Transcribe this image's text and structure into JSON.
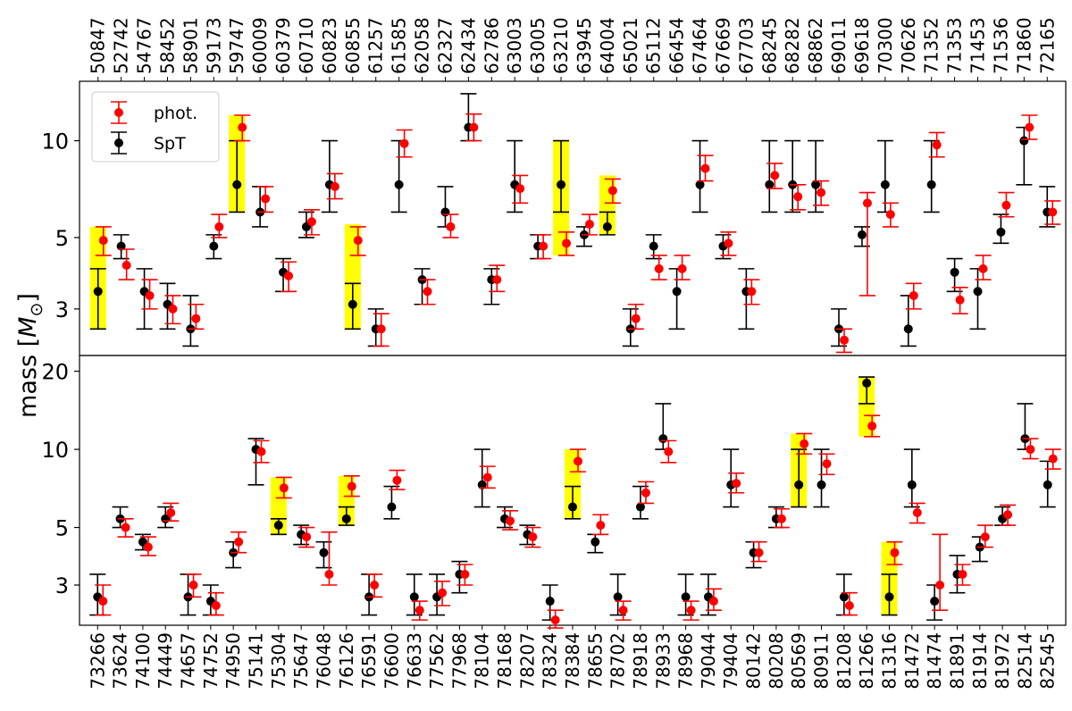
{
  "chart_data": {
    "type": "scatter",
    "ylabel_prefix": "mass [",
    "ylabel_symbol": "M",
    "ylabel_sub": "⊙",
    "ylabel_suffix": "]",
    "yscale": "log",
    "legend": {
      "placement": "top-left",
      "entries": [
        {
          "label": "phot.",
          "color": "#ff0000"
        },
        {
          "label": "SpT",
          "color": "#000000"
        }
      ]
    },
    "colors": {
      "phot": "#ff0000",
      "spt": "#000000",
      "highlight": "#ffff00"
    },
    "panels": [
      {
        "name": "top",
        "ylim": [
          2.15,
          15.3
        ],
        "yticks": [
          {
            "value": 3,
            "label": "3"
          },
          {
            "value": 5,
            "label": "5"
          },
          {
            "value": 10,
            "label": "10"
          }
        ],
        "label_side": "top",
        "categories": [
          "50847",
          "52742",
          "54767",
          "58452",
          "58901",
          "59173",
          "59747",
          "60009",
          "60379",
          "60710",
          "60823",
          "60855",
          "61257",
          "61585",
          "62058",
          "62327",
          "62434",
          "62786",
          "63003",
          "63005",
          "63210",
          "63945",
          "64004",
          "65021",
          "65112",
          "66454",
          "67464",
          "67669",
          "67703",
          "68245",
          "68282",
          "68862",
          "69011",
          "69618",
          "70300",
          "70626",
          "71352",
          "71353",
          "71453",
          "71536",
          "71860",
          "72165"
        ],
        "spt": [
          {
            "y": 3.4,
            "lo": 2.6,
            "hi": 4.0
          },
          {
            "y": 4.7,
            "lo": 4.3,
            "hi": 5.1
          },
          {
            "y": 3.4,
            "lo": 2.6,
            "hi": 4.0
          },
          {
            "y": 3.1,
            "lo": 2.6,
            "hi": 3.6
          },
          {
            "y": 2.6,
            "lo": 2.3,
            "hi": 3.3
          },
          {
            "y": 4.7,
            "lo": 4.3,
            "hi": 5.1
          },
          {
            "y": 7.3,
            "lo": 6.0,
            "hi": 10.0
          },
          {
            "y": 6.0,
            "lo": 5.4,
            "hi": 7.2
          },
          {
            "y": 3.9,
            "lo": 3.4,
            "hi": 4.3
          },
          {
            "y": 5.4,
            "lo": 5.0,
            "hi": 6.0
          },
          {
            "y": 7.3,
            "lo": 6.0,
            "hi": 10.0
          },
          {
            "y": 3.1,
            "lo": 2.6,
            "hi": 3.6
          },
          {
            "y": 2.6,
            "lo": 2.3,
            "hi": 3.0
          },
          {
            "y": 7.3,
            "lo": 6.0,
            "hi": 10.0
          },
          {
            "y": 3.7,
            "lo": 3.1,
            "hi": 4.0
          },
          {
            "y": 6.0,
            "lo": 5.4,
            "hi": 7.2
          },
          {
            "y": 11.0,
            "lo": 10.0,
            "hi": 14.0
          },
          {
            "y": 3.7,
            "lo": 3.1,
            "hi": 4.0
          },
          {
            "y": 7.3,
            "lo": 6.0,
            "hi": 10.0
          },
          {
            "y": 4.7,
            "lo": 4.3,
            "hi": 5.1
          },
          {
            "y": 7.3,
            "lo": 6.0,
            "hi": 10.0
          },
          {
            "y": 5.1,
            "lo": 4.7,
            "hi": 5.4
          },
          {
            "y": 5.4,
            "lo": 5.1,
            "hi": 6.0
          },
          {
            "y": 2.6,
            "lo": 2.3,
            "hi": 3.0
          },
          {
            "y": 4.7,
            "lo": 4.3,
            "hi": 5.1
          },
          {
            "y": 3.4,
            "lo": 2.6,
            "hi": 4.0
          },
          {
            "y": 7.3,
            "lo": 6.0,
            "hi": 10.0
          },
          {
            "y": 4.7,
            "lo": 4.3,
            "hi": 5.1
          },
          {
            "y": 3.4,
            "lo": 2.6,
            "hi": 4.0
          },
          {
            "y": 7.3,
            "lo": 6.0,
            "hi": 10.0
          },
          {
            "y": 7.3,
            "lo": 6.0,
            "hi": 10.0
          },
          {
            "y": 7.3,
            "lo": 6.0,
            "hi": 10.0
          },
          {
            "y": 2.6,
            "lo": 2.3,
            "hi": 3.0
          },
          {
            "y": 5.1,
            "lo": 4.7,
            "hi": 5.4
          },
          {
            "y": 7.3,
            "lo": 6.0,
            "hi": 10.0
          },
          {
            "y": 2.6,
            "lo": 2.3,
            "hi": 3.3
          },
          {
            "y": 7.3,
            "lo": 6.0,
            "hi": 10.0
          },
          {
            "y": 3.9,
            "lo": 3.4,
            "hi": 4.3
          },
          {
            "y": 3.4,
            "lo": 2.6,
            "hi": 4.0
          },
          {
            "y": 5.2,
            "lo": 4.8,
            "hi": 5.9
          },
          {
            "y": 10.0,
            "lo": 7.3,
            "hi": 11.0
          },
          {
            "y": 6.0,
            "lo": 5.4,
            "hi": 7.2
          }
        ],
        "phot": [
          {
            "y": 4.9,
            "lo": 4.4,
            "hi": 5.4
          },
          {
            "y": 4.1,
            "lo": 3.7,
            "hi": 4.6
          },
          {
            "y": 3.3,
            "lo": 3.0,
            "hi": 3.7
          },
          {
            "y": 3.0,
            "lo": 2.7,
            "hi": 3.3
          },
          {
            "y": 2.8,
            "lo": 2.6,
            "hi": 3.1
          },
          {
            "y": 5.4,
            "lo": 5.0,
            "hi": 5.9
          },
          {
            "y": 11.0,
            "lo": 10.0,
            "hi": 12.0
          },
          {
            "y": 6.6,
            "lo": 6.0,
            "hi": 7.2
          },
          {
            "y": 3.8,
            "lo": 3.4,
            "hi": 4.2
          },
          {
            "y": 5.6,
            "lo": 5.1,
            "hi": 6.1
          },
          {
            "y": 7.2,
            "lo": 6.6,
            "hi": 7.9
          },
          {
            "y": 4.9,
            "lo": 4.4,
            "hi": 5.4
          },
          {
            "y": 2.6,
            "lo": 2.3,
            "hi": 2.9
          },
          {
            "y": 9.8,
            "lo": 8.9,
            "hi": 10.8
          },
          {
            "y": 3.4,
            "lo": 3.1,
            "hi": 3.7
          },
          {
            "y": 5.4,
            "lo": 5.0,
            "hi": 5.9
          },
          {
            "y": 11.0,
            "lo": 10.0,
            "hi": 12.1
          },
          {
            "y": 3.7,
            "lo": 3.4,
            "hi": 4.1
          },
          {
            "y": 7.1,
            "lo": 6.4,
            "hi": 7.8
          },
          {
            "y": 4.7,
            "lo": 4.3,
            "hi": 5.1
          },
          {
            "y": 4.8,
            "lo": 4.4,
            "hi": 5.2
          },
          {
            "y": 5.5,
            "lo": 5.1,
            "hi": 5.9
          },
          {
            "y": 7.0,
            "lo": 6.4,
            "hi": 7.6
          },
          {
            "y": 2.8,
            "lo": 2.6,
            "hi": 3.1
          },
          {
            "y": 4.0,
            "lo": 3.7,
            "hi": 4.4
          },
          {
            "y": 4.0,
            "lo": 3.7,
            "hi": 4.4
          },
          {
            "y": 8.2,
            "lo": 7.5,
            "hi": 9.0
          },
          {
            "y": 4.8,
            "lo": 4.4,
            "hi": 5.2
          },
          {
            "y": 3.4,
            "lo": 3.1,
            "hi": 3.7
          },
          {
            "y": 7.8,
            "lo": 7.1,
            "hi": 8.5
          },
          {
            "y": 6.7,
            "lo": 6.1,
            "hi": 7.3
          },
          {
            "y": 6.9,
            "lo": 6.3,
            "hi": 7.5
          },
          {
            "y": 2.4,
            "lo": 2.2,
            "hi": 2.6
          },
          {
            "y": 6.4,
            "lo": 3.3,
            "hi": 6.9
          },
          {
            "y": 5.9,
            "lo": 5.4,
            "hi": 6.4
          },
          {
            "y": 3.3,
            "lo": 3.0,
            "hi": 3.6
          },
          {
            "y": 9.7,
            "lo": 8.9,
            "hi": 10.6
          },
          {
            "y": 3.2,
            "lo": 2.9,
            "hi": 3.5
          },
          {
            "y": 4.0,
            "lo": 3.7,
            "hi": 4.4
          },
          {
            "y": 6.3,
            "lo": 5.8,
            "hi": 6.9
          },
          {
            "y": 11.0,
            "lo": 10.1,
            "hi": 12.0
          },
          {
            "y": 6.0,
            "lo": 5.5,
            "hi": 6.5
          }
        ],
        "highlights": [
          {
            "index": 0,
            "lo": 2.6,
            "hi": 5.4
          },
          {
            "index": 6,
            "lo": 6.0,
            "hi": 12.0
          },
          {
            "index": 11,
            "lo": 2.6,
            "hi": 5.5
          },
          {
            "index": 20,
            "lo": 4.4,
            "hi": 10.0
          },
          {
            "index": 22,
            "lo": 5.1,
            "hi": 7.8
          }
        ]
      },
      {
        "name": "bottom",
        "ylim": [
          2.1,
          23.0
        ],
        "yticks": [
          {
            "value": 3,
            "label": "3"
          },
          {
            "value": 5,
            "label": "5"
          },
          {
            "value": 10,
            "label": "10"
          },
          {
            "value": 20,
            "label": "20"
          }
        ],
        "label_side": "bottom",
        "categories": [
          "73266",
          "73624",
          "74100",
          "74449",
          "74657",
          "74752",
          "74950",
          "75141",
          "75304",
          "75647",
          "76048",
          "76126",
          "76591",
          "76600",
          "76633",
          "77562",
          "77968",
          "78104",
          "78168",
          "78207",
          "78324",
          "78384",
          "78655",
          "78702",
          "78918",
          "78933",
          "78968",
          "79044",
          "79404",
          "80142",
          "80208",
          "80569",
          "80911",
          "81208",
          "81266",
          "81316",
          "81472",
          "81474",
          "81891",
          "81914",
          "81972",
          "82514",
          "82545"
        ],
        "spt": [
          {
            "y": 2.7,
            "lo": 2.3,
            "hi": 3.3
          },
          {
            "y": 5.4,
            "lo": 5.0,
            "hi": 6.0
          },
          {
            "y": 4.4,
            "lo": 4.1,
            "hi": 4.7
          },
          {
            "y": 5.4,
            "lo": 5.0,
            "hi": 6.0
          },
          {
            "y": 2.7,
            "lo": 2.3,
            "hi": 3.3
          },
          {
            "y": 2.6,
            "lo": 2.3,
            "hi": 3.0
          },
          {
            "y": 4.0,
            "lo": 3.5,
            "hi": 4.4
          },
          {
            "y": 10.0,
            "lo": 7.3,
            "hi": 11.0
          },
          {
            "y": 5.1,
            "lo": 4.7,
            "hi": 5.4
          },
          {
            "y": 4.7,
            "lo": 4.3,
            "hi": 5.1
          },
          {
            "y": 4.0,
            "lo": 3.5,
            "hi": 4.4
          },
          {
            "y": 5.4,
            "lo": 5.1,
            "hi": 6.0
          },
          {
            "y": 2.7,
            "lo": 2.3,
            "hi": 3.3
          },
          {
            "y": 6.0,
            "lo": 5.4,
            "hi": 7.2
          },
          {
            "y": 2.7,
            "lo": 2.3,
            "hi": 3.3
          },
          {
            "y": 2.7,
            "lo": 2.3,
            "hi": 3.3
          },
          {
            "y": 3.3,
            "lo": 2.8,
            "hi": 3.7
          },
          {
            "y": 7.3,
            "lo": 6.0,
            "hi": 10.0
          },
          {
            "y": 5.4,
            "lo": 5.0,
            "hi": 6.0
          },
          {
            "y": 4.7,
            "lo": 4.3,
            "hi": 5.1
          },
          {
            "y": 2.6,
            "lo": 2.2,
            "hi": 3.0
          },
          {
            "y": 6.0,
            "lo": 5.4,
            "hi": 7.2
          },
          {
            "y": 4.4,
            "lo": 4.0,
            "hi": 4.7
          },
          {
            "y": 2.7,
            "lo": 2.3,
            "hi": 3.3
          },
          {
            "y": 6.0,
            "lo": 5.4,
            "hi": 7.2
          },
          {
            "y": 11.0,
            "lo": 10.0,
            "hi": 15.0
          },
          {
            "y": 2.7,
            "lo": 2.3,
            "hi": 3.3
          },
          {
            "y": 2.7,
            "lo": 2.3,
            "hi": 3.3
          },
          {
            "y": 7.3,
            "lo": 6.0,
            "hi": 10.0
          },
          {
            "y": 4.0,
            "lo": 3.5,
            "hi": 4.4
          },
          {
            "y": 5.4,
            "lo": 5.0,
            "hi": 6.0
          },
          {
            "y": 7.3,
            "lo": 6.0,
            "hi": 10.0
          },
          {
            "y": 7.3,
            "lo": 6.0,
            "hi": 10.0
          },
          {
            "y": 2.7,
            "lo": 2.3,
            "hi": 3.3
          },
          {
            "y": 18.0,
            "lo": 15.0,
            "hi": 19.0
          },
          {
            "y": 2.7,
            "lo": 2.3,
            "hi": 3.3
          },
          {
            "y": 7.3,
            "lo": 6.0,
            "hi": 10.0
          },
          {
            "y": 2.6,
            "lo": 2.2,
            "hi": 3.0
          },
          {
            "y": 3.3,
            "lo": 2.8,
            "hi": 3.9
          },
          {
            "y": 4.2,
            "lo": 3.7,
            "hi": 4.6
          },
          {
            "y": 5.4,
            "lo": 5.1,
            "hi": 6.0
          },
          {
            "y": 11.0,
            "lo": 10.0,
            "hi": 15.0
          },
          {
            "y": 7.3,
            "lo": 6.0,
            "hi": 9.0
          }
        ],
        "phot": [
          {
            "y": 2.6,
            "lo": 2.3,
            "hi": 3.0
          },
          {
            "y": 5.0,
            "lo": 4.6,
            "hi": 5.4
          },
          {
            "y": 4.2,
            "lo": 3.9,
            "hi": 4.6
          },
          {
            "y": 5.7,
            "lo": 5.3,
            "hi": 6.2
          },
          {
            "y": 3.0,
            "lo": 2.7,
            "hi": 3.3
          },
          {
            "y": 2.5,
            "lo": 2.3,
            "hi": 2.8
          },
          {
            "y": 4.4,
            "lo": 4.0,
            "hi": 4.8
          },
          {
            "y": 9.8,
            "lo": 8.9,
            "hi": 10.8
          },
          {
            "y": 7.1,
            "lo": 6.5,
            "hi": 7.8
          },
          {
            "y": 4.6,
            "lo": 4.2,
            "hi": 5.0
          },
          {
            "y": 3.3,
            "lo": 3.0,
            "hi": 4.8
          },
          {
            "y": 7.2,
            "lo": 6.6,
            "hi": 7.9
          },
          {
            "y": 3.0,
            "lo": 2.7,
            "hi": 3.3
          },
          {
            "y": 7.6,
            "lo": 7.0,
            "hi": 8.3
          },
          {
            "y": 2.4,
            "lo": 2.2,
            "hi": 2.6
          },
          {
            "y": 2.8,
            "lo": 2.5,
            "hi": 3.1
          },
          {
            "y": 3.3,
            "lo": 3.0,
            "hi": 3.6
          },
          {
            "y": 7.8,
            "lo": 7.1,
            "hi": 8.6
          },
          {
            "y": 5.3,
            "lo": 4.9,
            "hi": 5.8
          },
          {
            "y": 4.6,
            "lo": 4.2,
            "hi": 5.0
          },
          {
            "y": 2.2,
            "lo": 2.05,
            "hi": 2.4
          },
          {
            "y": 9.0,
            "lo": 8.2,
            "hi": 10.0
          },
          {
            "y": 5.1,
            "lo": 4.7,
            "hi": 5.6
          },
          {
            "y": 2.4,
            "lo": 2.2,
            "hi": 2.6
          },
          {
            "y": 6.8,
            "lo": 6.2,
            "hi": 7.5
          },
          {
            "y": 9.8,
            "lo": 8.9,
            "hi": 10.8
          },
          {
            "y": 2.4,
            "lo": 2.2,
            "hi": 2.6
          },
          {
            "y": 2.6,
            "lo": 2.4,
            "hi": 2.9
          },
          {
            "y": 7.4,
            "lo": 6.8,
            "hi": 8.1
          },
          {
            "y": 4.0,
            "lo": 3.7,
            "hi": 4.4
          },
          {
            "y": 5.4,
            "lo": 5.0,
            "hi": 5.9
          },
          {
            "y": 10.5,
            "lo": 9.6,
            "hi": 11.5
          },
          {
            "y": 8.8,
            "lo": 8.0,
            "hi": 9.6
          },
          {
            "y": 2.5,
            "lo": 2.3,
            "hi": 2.8
          },
          {
            "y": 12.3,
            "lo": 11.2,
            "hi": 13.5
          },
          {
            "y": 4.0,
            "lo": 3.6,
            "hi": 4.4
          },
          {
            "y": 5.7,
            "lo": 5.2,
            "hi": 6.2
          },
          {
            "y": 3.0,
            "lo": 2.4,
            "hi": 4.7
          },
          {
            "y": 3.3,
            "lo": 3.0,
            "hi": 3.6
          },
          {
            "y": 4.6,
            "lo": 4.2,
            "hi": 5.1
          },
          {
            "y": 5.6,
            "lo": 5.1,
            "hi": 6.1
          },
          {
            "y": 10.0,
            "lo": 9.2,
            "hi": 11.0
          },
          {
            "y": 9.2,
            "lo": 8.4,
            "hi": 10.0
          }
        ],
        "highlights": [
          {
            "index": 8,
            "lo": 4.7,
            "hi": 7.8
          },
          {
            "index": 11,
            "lo": 5.1,
            "hi": 7.9
          },
          {
            "index": 21,
            "lo": 5.4,
            "hi": 10.0
          },
          {
            "index": 31,
            "lo": 6.0,
            "hi": 11.5
          },
          {
            "index": 34,
            "lo": 11.2,
            "hi": 19.0
          },
          {
            "index": 35,
            "lo": 2.3,
            "hi": 4.4
          }
        ]
      }
    ]
  }
}
